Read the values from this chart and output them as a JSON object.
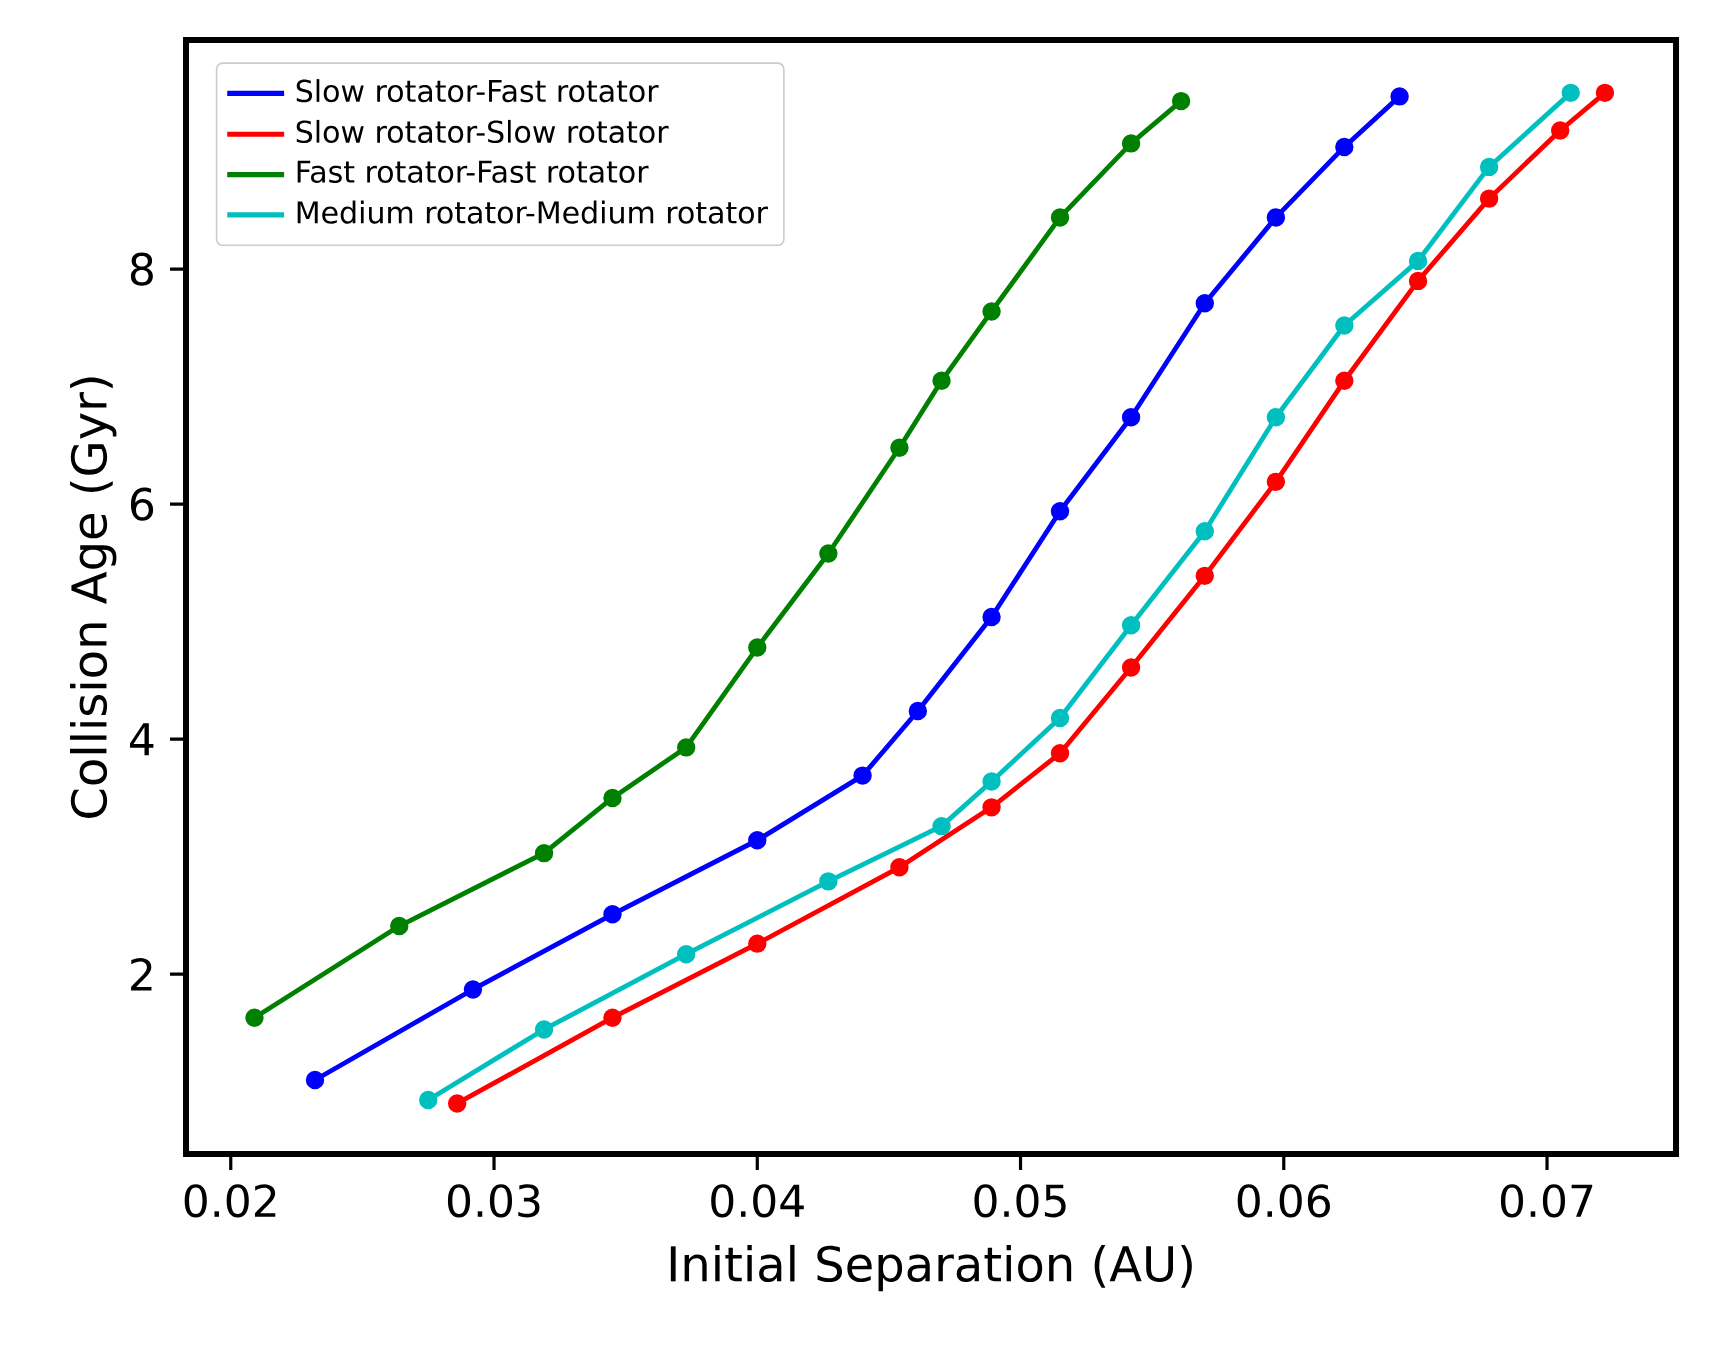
{
  "chart_data": {
    "type": "line",
    "xlabel": "Initial Separation (AU)",
    "ylabel": "Collision Age (Gyr)",
    "xlim": [
      0.0183,
      0.0749
    ],
    "ylim": [
      0.47,
      9.95
    ],
    "xticks": [
      0.02,
      0.03,
      0.04,
      0.05,
      0.06,
      0.07
    ],
    "yticks": [
      2,
      4,
      6,
      8
    ],
    "grid": false,
    "legend": "top left",
    "marker": "circle",
    "line_style": "solid",
    "series": [
      {
        "name": "Slow rotator-Fast rotator",
        "color": "#0000ff",
        "x": [
          0.0232,
          0.0292,
          0.0345,
          0.04,
          0.044,
          0.0461,
          0.0489,
          0.0515,
          0.0542,
          0.057,
          0.0597,
          0.0623,
          0.0644
        ],
        "values": [
          1.1,
          1.87,
          2.51,
          3.14,
          3.69,
          4.24,
          5.04,
          5.94,
          6.74,
          7.71,
          8.44,
          9.04,
          9.47
        ]
      },
      {
        "name": "Slow rotator-Slow rotator",
        "color": "#ff0000",
        "x": [
          0.0286,
          0.0345,
          0.04,
          0.0454,
          0.0489,
          0.0515,
          0.0542,
          0.057,
          0.0597,
          0.0623,
          0.0651,
          0.0678,
          0.0705,
          0.0722
        ],
        "values": [
          0.9,
          1.63,
          2.26,
          2.91,
          3.42,
          3.88,
          4.61,
          5.39,
          6.19,
          7.05,
          7.9,
          8.6,
          9.18,
          9.5
        ]
      },
      {
        "name": "Fast rotator-Fast rotator",
        "color": "#008000",
        "x": [
          0.0209,
          0.0264,
          0.0319,
          0.0345,
          0.0373,
          0.04,
          0.0427,
          0.0454,
          0.047,
          0.0489,
          0.0515,
          0.0542,
          0.0561
        ],
        "values": [
          1.63,
          2.41,
          3.03,
          3.5,
          3.93,
          4.78,
          5.58,
          6.48,
          7.05,
          7.64,
          8.44,
          9.07,
          9.43
        ]
      },
      {
        "name": "Medium rotator-Medium rotator",
        "color": "#00bfbf",
        "x": [
          0.0275,
          0.0319,
          0.0373,
          0.0427,
          0.047,
          0.0489,
          0.0515,
          0.0542,
          0.057,
          0.0597,
          0.0623,
          0.0651,
          0.0678,
          0.0709
        ],
        "values": [
          0.93,
          1.53,
          2.17,
          2.79,
          3.26,
          3.64,
          4.18,
          4.97,
          5.77,
          6.74,
          7.52,
          8.07,
          8.87,
          9.5
        ]
      }
    ]
  }
}
